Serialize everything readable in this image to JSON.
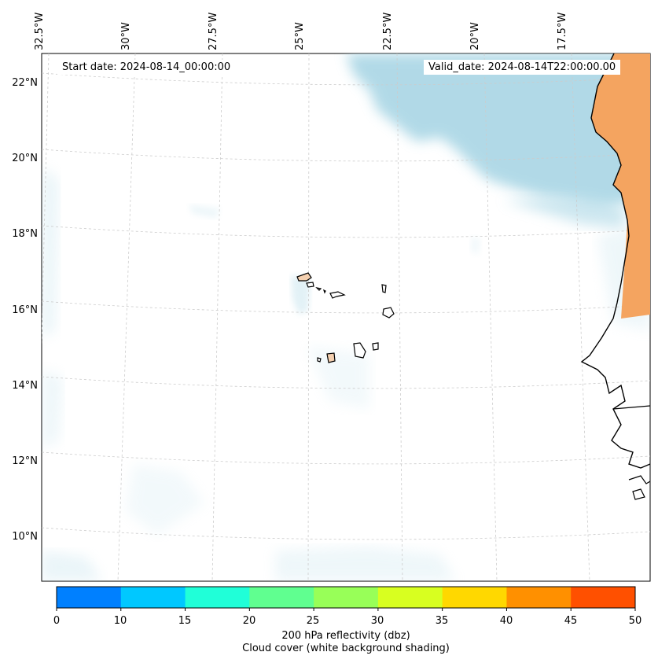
{
  "header": {
    "start_date": "Start date: 2024-08-14_00:00:00",
    "valid_date": "Valid_date: 2024-08-14T22:00:00.00"
  },
  "axes": {
    "lon_labels": [
      "32.5°W",
      "30°W",
      "27.5°W",
      "25°W",
      "22.5°W",
      "20°W",
      "17.5°W"
    ],
    "lat_labels": [
      "22°N",
      "20°N",
      "18°N",
      "16°N",
      "14°N",
      "12°N",
      "10°N"
    ]
  },
  "colorbar": {
    "ticks": [
      "0",
      "10",
      "15",
      "20",
      "25",
      "30",
      "35",
      "40",
      "45",
      "50"
    ],
    "colors": [
      "#0080ff",
      "#00c8ff",
      "#20ffd8",
      "#60ff90",
      "#98ff58",
      "#d8ff20",
      "#ffd800",
      "#ff9000",
      "#ff5000"
    ],
    "label_line1": "200 hPa reflectivity (dbz)",
    "label_line2": "Cloud cover (white background shading)"
  },
  "colors": {
    "cloud": "#add8e6",
    "land_hot": "#f4a460",
    "coast": "#000000",
    "grid": "#cccccc"
  }
}
